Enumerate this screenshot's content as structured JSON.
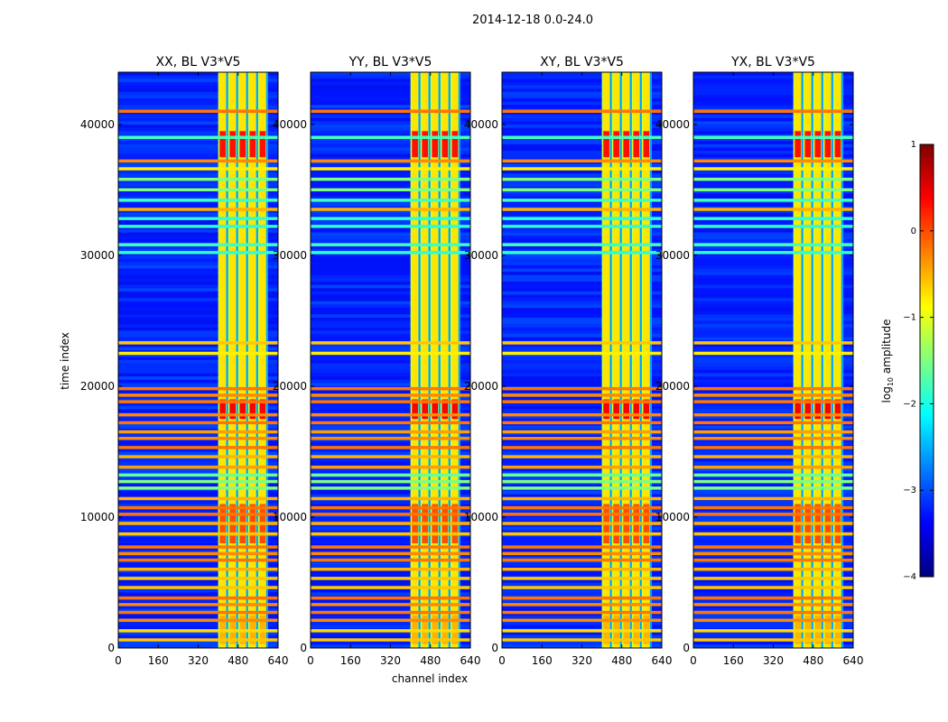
{
  "chart_data": {
    "type": "heatmap",
    "suptitle": "2014-12-18 0.0-24.0",
    "xlabel": "channel index",
    "ylabel": "time index",
    "xlim": [
      0,
      640
    ],
    "ylim": [
      0,
      44000
    ],
    "xticks": [
      0,
      160,
      320,
      480,
      640
    ],
    "yticks": [
      0,
      10000,
      20000,
      30000,
      40000
    ],
    "colormap": "jet",
    "colorbar": {
      "label_main": "log",
      "label_sub": "10",
      "label_tail": " amplitude",
      "range": [
        -4,
        1
      ],
      "ticks": [
        1,
        0,
        -1,
        -2,
        -3,
        -4
      ],
      "tick_labels": [
        "1",
        "0",
        "−1",
        "−2",
        "−3",
        "−4"
      ],
      "colors": [
        "#00007f",
        "#0000ff",
        "#007fff",
        "#00ffff",
        "#7fff7f",
        "#ffff00",
        "#ff7f00",
        "#ff0000",
        "#7f0000"
      ]
    },
    "panels": [
      {
        "title": "XX, BL V3*V5",
        "band_start": 400,
        "band_end": 600
      },
      {
        "title": "YY, BL V3*V5",
        "band_start": 400,
        "band_end": 600
      },
      {
        "title": "XY, BL V3*V5",
        "band_start": 400,
        "band_end": 600
      },
      {
        "title": "YX, BL V3*V5",
        "band_start": 400,
        "band_end": 600
      }
    ],
    "background_level": -3.2,
    "band_level": -1.1,
    "hot_regions": [
      {
        "y0": 37500,
        "y1": 39500,
        "level": 0.3
      },
      {
        "y0": 17500,
        "y1": 19000,
        "level": 0.4
      },
      {
        "y0": 8000,
        "y1": 11000,
        "level": 0.0
      },
      {
        "y0": 300,
        "y1": 2500,
        "level": -0.5
      }
    ],
    "rfi_lines": [
      {
        "t": 41000,
        "level": -0.2
      },
      {
        "t": 39000,
        "level": -1.8
      },
      {
        "t": 37200,
        "level": -0.3
      },
      {
        "t": 36600,
        "level": -0.8
      },
      {
        "t": 35800,
        "level": -1.5
      },
      {
        "t": 35000,
        "level": -1.5
      },
      {
        "t": 34200,
        "level": -1.8
      },
      {
        "t": 33500,
        "level": -0.5
      },
      {
        "t": 32800,
        "level": -1.9
      },
      {
        "t": 32200,
        "level": -1.9
      },
      {
        "t": 30800,
        "level": -1.8
      },
      {
        "t": 30200,
        "level": -1.9
      },
      {
        "t": 23300,
        "level": -0.6
      },
      {
        "t": 22500,
        "level": -0.8
      },
      {
        "t": 19800,
        "level": -0.2
      },
      {
        "t": 19300,
        "level": -0.3
      },
      {
        "t": 18800,
        "level": -0.2
      },
      {
        "t": 17800,
        "level": -0.3
      },
      {
        "t": 17200,
        "level": -0.2
      },
      {
        "t": 16500,
        "level": -0.4
      },
      {
        "t": 16000,
        "level": -0.3
      },
      {
        "t": 15300,
        "level": -0.2
      },
      {
        "t": 14600,
        "level": -0.5
      },
      {
        "t": 13800,
        "level": -0.4
      },
      {
        "t": 13200,
        "level": -1.6
      },
      {
        "t": 12700,
        "level": -1.5
      },
      {
        "t": 12200,
        "level": -1.5
      },
      {
        "t": 11400,
        "level": -0.5
      },
      {
        "t": 10700,
        "level": -0.2
      },
      {
        "t": 10200,
        "level": -0.2
      },
      {
        "t": 9500,
        "level": -0.5
      },
      {
        "t": 8700,
        "level": -0.6
      },
      {
        "t": 7700,
        "level": -0.2
      },
      {
        "t": 7200,
        "level": -0.3
      },
      {
        "t": 6700,
        "level": -0.2
      },
      {
        "t": 6000,
        "level": -0.5
      },
      {
        "t": 5300,
        "level": -0.6
      },
      {
        "t": 4600,
        "level": -0.6
      },
      {
        "t": 3800,
        "level": -0.2
      },
      {
        "t": 3300,
        "level": -0.3
      },
      {
        "t": 2700,
        "level": -0.2
      },
      {
        "t": 2100,
        "level": -0.3
      },
      {
        "t": 1300,
        "level": -0.7
      },
      {
        "t": 600,
        "level": -0.6
      }
    ]
  }
}
